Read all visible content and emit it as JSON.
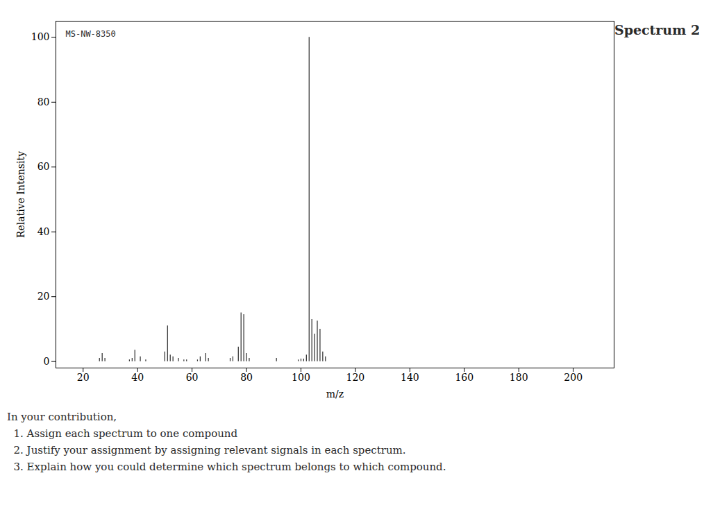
{
  "chart_data": {
    "type": "bar",
    "title": "Spectrum 2",
    "xlabel": "m/z",
    "ylabel": "Relative Intensity",
    "x": [
      26,
      27,
      28,
      37,
      38,
      39,
      41,
      43,
      50,
      51,
      52,
      53,
      55,
      57,
      58,
      62,
      63,
      65,
      66,
      74,
      75,
      77,
      78,
      79,
      80,
      81,
      91,
      99,
      100,
      101,
      102,
      103,
      104,
      105,
      106,
      107,
      108,
      109
    ],
    "values": [
      1.0,
      2.5,
      1.0,
      0.5,
      1.0,
      3.5,
      1.5,
      0.5,
      3.0,
      11.0,
      2.0,
      1.5,
      1.0,
      0.5,
      0.5,
      0.5,
      1.5,
      2.5,
      1.0,
      1.0,
      1.5,
      4.5,
      15.0,
      14.5,
      2.5,
      1.0,
      1.0,
      0.5,
      0.8,
      0.8,
      2.0,
      100.0,
      13.0,
      8.5,
      12.5,
      10.0,
      3.0,
      1.5
    ],
    "color": "#2a2a2a",
    "xlim": [
      10,
      215
    ],
    "xticks": [
      20,
      40,
      60,
      80,
      100,
      120,
      140,
      160,
      180,
      200
    ],
    "ylim": [
      -2,
      105
    ],
    "yticks": [
      0,
      20,
      40,
      60,
      80,
      100
    ],
    "grid": false,
    "annotations": [
      "MS-NW-8350",
      "In your contribution,",
      "  1. Assign each spectrum to one compound",
      "  2. Justify your assignment by assigning relevant signals in each spectrum.",
      "  3. Explain how you could determine which spectrum belongs to which compound."
    ]
  }
}
